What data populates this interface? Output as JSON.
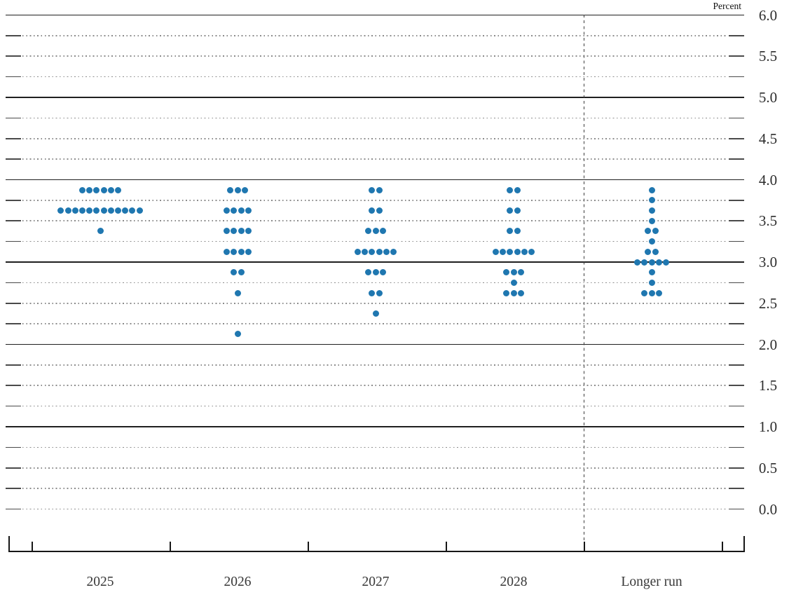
{
  "chart_data": {
    "type": "scatter",
    "subtype": "fomc-dot-plot",
    "title": "",
    "unit_label": "Percent",
    "categories": [
      "2025",
      "2026",
      "2027",
      "2028",
      "Longer run"
    ],
    "y_axis": {
      "min": 0.0,
      "max": 6.0,
      "grid_step": 0.25,
      "label_step": 0.5,
      "tick_labels": [
        "6.0",
        "5.5",
        "5.0",
        "4.5",
        "4.0",
        "3.5",
        "3.0",
        "2.5",
        "2.0",
        "1.5",
        "1.0",
        "0.5",
        "0.0"
      ],
      "solid_gridlines": [
        1.0,
        2.0,
        3.0,
        4.0,
        5.0,
        6.0
      ],
      "grid_on": true
    },
    "separator_after_category": "2028",
    "dot_color": "#1f77b0",
    "participants_per_year": 19,
    "series": [
      {
        "category": "2025",
        "dots": [
          {
            "rate": 3.875,
            "count": 6
          },
          {
            "rate": 3.625,
            "count": 12
          },
          {
            "rate": 3.375,
            "count": 1
          }
        ]
      },
      {
        "category": "2026",
        "dots": [
          {
            "rate": 3.875,
            "count": 3
          },
          {
            "rate": 3.625,
            "count": 4
          },
          {
            "rate": 3.375,
            "count": 4
          },
          {
            "rate": 3.125,
            "count": 4
          },
          {
            "rate": 2.875,
            "count": 2
          },
          {
            "rate": 2.625,
            "count": 1
          },
          {
            "rate": 2.125,
            "count": 1
          }
        ]
      },
      {
        "category": "2027",
        "dots": [
          {
            "rate": 3.875,
            "count": 2
          },
          {
            "rate": 3.625,
            "count": 2
          },
          {
            "rate": 3.375,
            "count": 3
          },
          {
            "rate": 3.125,
            "count": 6
          },
          {
            "rate": 2.875,
            "count": 3
          },
          {
            "rate": 2.625,
            "count": 2
          },
          {
            "rate": 2.375,
            "count": 1
          }
        ]
      },
      {
        "category": "2028",
        "dots": [
          {
            "rate": 3.875,
            "count": 2
          },
          {
            "rate": 3.625,
            "count": 2
          },
          {
            "rate": 3.375,
            "count": 2
          },
          {
            "rate": 3.125,
            "count": 6
          },
          {
            "rate": 2.875,
            "count": 3
          },
          {
            "rate": 2.75,
            "count": 1
          },
          {
            "rate": 2.625,
            "count": 3
          }
        ]
      },
      {
        "category": "Longer run",
        "dots": [
          {
            "rate": 3.875,
            "count": 1
          },
          {
            "rate": 3.75,
            "count": 1
          },
          {
            "rate": 3.625,
            "count": 1
          },
          {
            "rate": 3.5,
            "count": 1
          },
          {
            "rate": 3.375,
            "count": 2
          },
          {
            "rate": 3.25,
            "count": 1
          },
          {
            "rate": 3.125,
            "count": 2
          },
          {
            "rate": 3.0,
            "count": 5
          },
          {
            "rate": 2.875,
            "count": 1
          },
          {
            "rate": 2.75,
            "count": 1
          },
          {
            "rate": 2.625,
            "count": 3
          }
        ]
      }
    ]
  }
}
